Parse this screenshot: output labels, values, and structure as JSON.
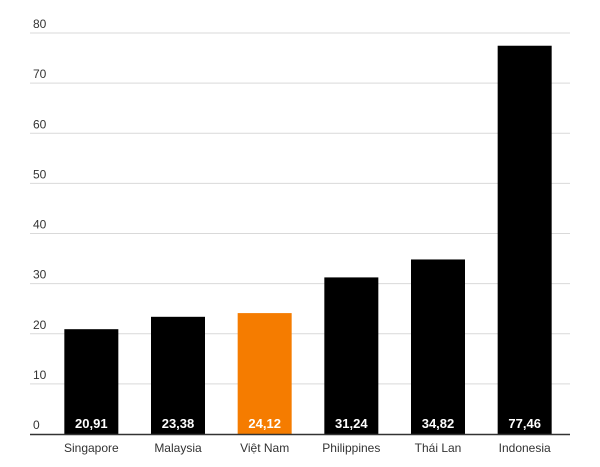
{
  "chart_data": {
    "type": "bar",
    "categories": [
      "Singapore",
      "Malaysia",
      "Việt Nam",
      "Philippines",
      "Thái Lan",
      "Indonesia"
    ],
    "values": [
      20.91,
      23.38,
      24.12,
      31.24,
      34.82,
      77.46
    ],
    "data_labels": [
      "20,91",
      "23,38",
      "24,12",
      "31,24",
      "34,82",
      "77,46"
    ],
    "ylim": [
      0,
      80
    ],
    "yticks": [
      0,
      10,
      20,
      30,
      40,
      50,
      60,
      70,
      80
    ],
    "grid": true,
    "colors": {
      "default": "#000000",
      "highlight": "#f57c00",
      "highlight_category": "Việt Nam",
      "grid": "#d9d9d9",
      "axis": "#333333"
    }
  }
}
